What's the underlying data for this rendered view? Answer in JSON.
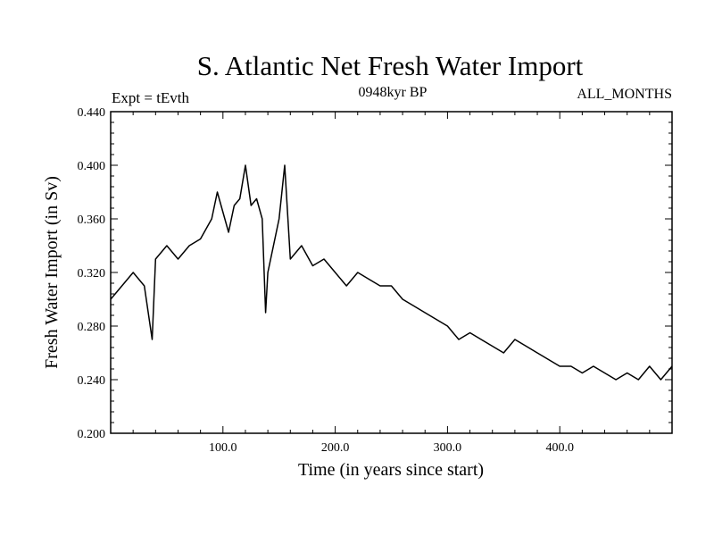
{
  "chart_data": {
    "type": "line",
    "title": "S. Atlantic Net Fresh Water Import",
    "subtitle_left": "Expt = tEvth",
    "subtitle_center": "0948kyr BP",
    "subtitle_right": "ALL_MONTHS",
    "xlabel": "Time (in years since start)",
    "ylabel": "Fresh Water Import (in Sv)",
    "xlim": [
      0,
      500
    ],
    "ylim": [
      0.2,
      0.44
    ],
    "x_ticks": [
      100,
      200,
      300,
      400
    ],
    "x_tick_labels": [
      "100.0",
      "200.0",
      "300.0",
      "400.0"
    ],
    "y_ticks": [
      0.2,
      0.24,
      0.28,
      0.32,
      0.36,
      0.4,
      0.44
    ],
    "y_tick_labels": [
      "0.200",
      "0.240",
      "0.280",
      "0.320",
      "0.360",
      "0.400",
      "0.440"
    ],
    "grid": false,
    "series": [
      {
        "name": "Fresh Water Import",
        "color": "#000000",
        "x": [
          0,
          10,
          20,
          30,
          37,
          40,
          50,
          60,
          70,
          80,
          90,
          95,
          100,
          105,
          110,
          115,
          120,
          125,
          130,
          135,
          138,
          140,
          150,
          155,
          160,
          170,
          180,
          190,
          200,
          210,
          220,
          230,
          240,
          250,
          260,
          270,
          280,
          290,
          300,
          310,
          320,
          330,
          340,
          350,
          360,
          370,
          380,
          390,
          400,
          410,
          420,
          430,
          440,
          450,
          460,
          470,
          480,
          490,
          500
        ],
        "y": [
          0.3,
          0.31,
          0.32,
          0.31,
          0.27,
          0.33,
          0.34,
          0.33,
          0.34,
          0.345,
          0.36,
          0.38,
          0.365,
          0.35,
          0.37,
          0.375,
          0.4,
          0.37,
          0.375,
          0.36,
          0.29,
          0.32,
          0.36,
          0.4,
          0.33,
          0.34,
          0.325,
          0.33,
          0.32,
          0.31,
          0.32,
          0.315,
          0.31,
          0.31,
          0.3,
          0.295,
          0.29,
          0.285,
          0.28,
          0.27,
          0.275,
          0.27,
          0.265,
          0.26,
          0.27,
          0.265,
          0.26,
          0.255,
          0.25,
          0.25,
          0.245,
          0.25,
          0.245,
          0.24,
          0.245,
          0.24,
          0.25,
          0.24,
          0.25
        ]
      }
    ]
  }
}
